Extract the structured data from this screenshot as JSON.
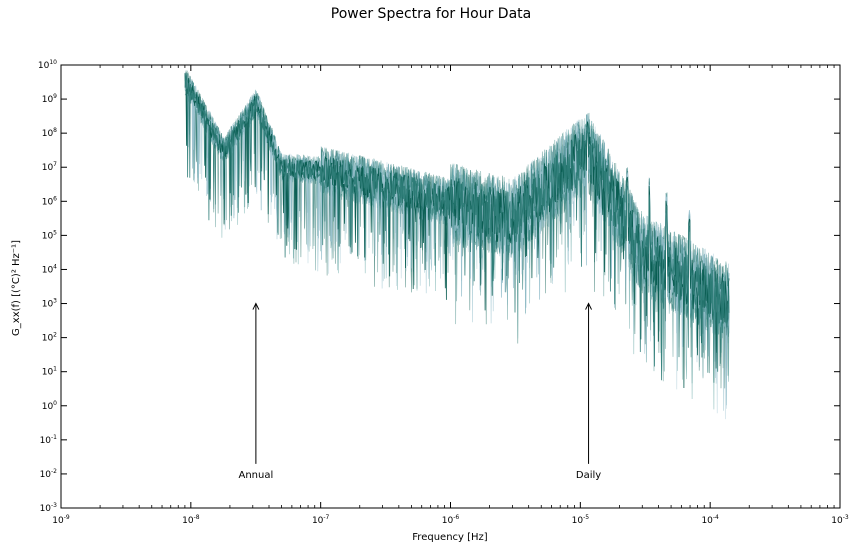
{
  "chart_data": {
    "type": "line",
    "title": "Power Spectra for Hour Data",
    "xlabel": "Frequency [Hz]",
    "ylabel": "G_xx(f) [(°C)² Hz⁻¹]",
    "xscale": "log",
    "yscale": "log",
    "xlim": [
      1e-09,
      0.001
    ],
    "ylim": [
      0.001,
      10000000000.0
    ],
    "x_ticks": [
      {
        "base": "10",
        "exp": "-9"
      },
      {
        "base": "10",
        "exp": "-8"
      },
      {
        "base": "10",
        "exp": "-7"
      },
      {
        "base": "10",
        "exp": "-6"
      },
      {
        "base": "10",
        "exp": "-5"
      },
      {
        "base": "10",
        "exp": "-4"
      },
      {
        "base": "10",
        "exp": "-3"
      }
    ],
    "y_ticks": [
      {
        "base": "10",
        "exp": "-3"
      },
      {
        "base": "10",
        "exp": "-2"
      },
      {
        "base": "10",
        "exp": "-1"
      },
      {
        "base": "10",
        "exp": "0"
      },
      {
        "base": "10",
        "exp": "1"
      },
      {
        "base": "10",
        "exp": "2"
      },
      {
        "base": "10",
        "exp": "3"
      },
      {
        "base": "10",
        "exp": "4"
      },
      {
        "base": "10",
        "exp": "5"
      },
      {
        "base": "10",
        "exp": "6"
      },
      {
        "base": "10",
        "exp": "7"
      },
      {
        "base": "10",
        "exp": "8"
      },
      {
        "base": "10",
        "exp": "9"
      },
      {
        "base": "10",
        "exp": "10"
      }
    ],
    "grid": false,
    "series_count": 12,
    "colors": [
      "#045a4e",
      "#2e7d78",
      "#4e9a98",
      "#7fb3c2",
      "#9cc3d0"
    ],
    "freq_range": [
      9e-09,
      0.00014
    ],
    "series": [
      {
        "x": [
          9e-09,
          1.8e-08,
          3.2e-08,
          5e-08,
          1e-07,
          3e-07,
          1e-06,
          3e-06,
          1.14e-05,
          3e-05,
          0.00014
        ],
        "y": [
          3500000000.0,
          30000000.0,
          800000000.0,
          10000000.0,
          8000000.0,
          3000000.0,
          900000.0,
          300000.0,
          30000000.0,
          30000.0,
          1000.0
        ]
      }
    ],
    "peaks": [
      {
        "x": 1.14e-05,
        "y": 400000000.0
      },
      {
        "x": 1.6e-05,
        "y": 20000000.0
      },
      {
        "x": 2.3e-05,
        "y": 10000000.0
      },
      {
        "x": 3.4e-05,
        "y": 5000000.0
      },
      {
        "x": 4.6e-05,
        "y": 2000000.0
      },
      {
        "x": 6.9e-05,
        "y": 600000.0
      }
    ],
    "annotations": [
      {
        "text": "Annual",
        "x": 3.17e-08,
        "y_text": 0.01,
        "y_arrow": 1000
      },
      {
        "text": "Daily",
        "x": 1.157e-05,
        "y_text": 0.01,
        "y_arrow": 1000
      }
    ]
  }
}
